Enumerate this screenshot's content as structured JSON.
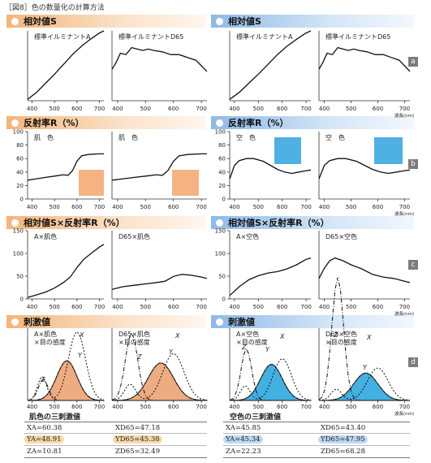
{
  "figure_caption": "［図8］色の数量化の計算方法",
  "units_label": "波長(nm)",
  "x_ticks": [
    "400",
    "500",
    "600",
    "700"
  ],
  "colors": {
    "orange_band": "#f2b57a",
    "blue_band": "#8fb9e6",
    "skin_swatch": "#f3a66f",
    "sky_swatch": "#4fb0e4",
    "fill_orange": "#eda474",
    "fill_blue": "#2fa8df",
    "tag_gray": "#7c7c7c"
  },
  "rows": [
    {
      "tag": "a",
      "left_title": "相対値S",
      "right_title": "相対値S",
      "panels": [
        "標準イルミナントA",
        "標準イルミナントD65",
        "標準イルミナントA",
        "標準イルミナントD65"
      ],
      "y_ticks": []
    },
    {
      "tag": "b",
      "left_title": "反射率R（%）",
      "right_title": "反射率R（%）",
      "panels": [
        "肌　色",
        "肌　色",
        "空　色",
        "空　色"
      ],
      "y_ticks": [
        "100",
        "80",
        "60",
        "40",
        "20",
        "0"
      ]
    },
    {
      "tag": "c",
      "left_title": "相対値S×反射率R（%）",
      "right_title": "相対値S×反射率R（%）",
      "panels": [
        "A×肌色",
        "D65×肌色",
        "A×空色",
        "D65×空色"
      ],
      "y_ticks": [
        "150",
        "100",
        "50",
        "0"
      ]
    },
    {
      "tag": "d",
      "left_title": "刺激値",
      "right_title": "刺激値",
      "panels": [
        "A×肌色\n×目の感度",
        "D65×肌色\n×目の感度",
        "A×空色\n×目の感度",
        "D65×空色\n×目の感度"
      ],
      "y_ticks": []
    }
  ],
  "curve_letters": {
    "x": "X",
    "y": "Y",
    "z": "Z"
  },
  "tables": {
    "left": {
      "title": "肌色の三刺激値",
      "cells": [
        "XA=60.38",
        "XD65=47.18",
        "YA=48.91",
        "YD65=45.38",
        "ZA=10.81",
        "ZD65=32.49"
      ]
    },
    "right": {
      "title": "空色の三刺激値",
      "cells": [
        "XA=45.85",
        "XD65=43.40",
        "YA=45.34",
        "YD65=47.95",
        "ZA=22.23",
        "ZD65=68.28"
      ]
    }
  }
}
